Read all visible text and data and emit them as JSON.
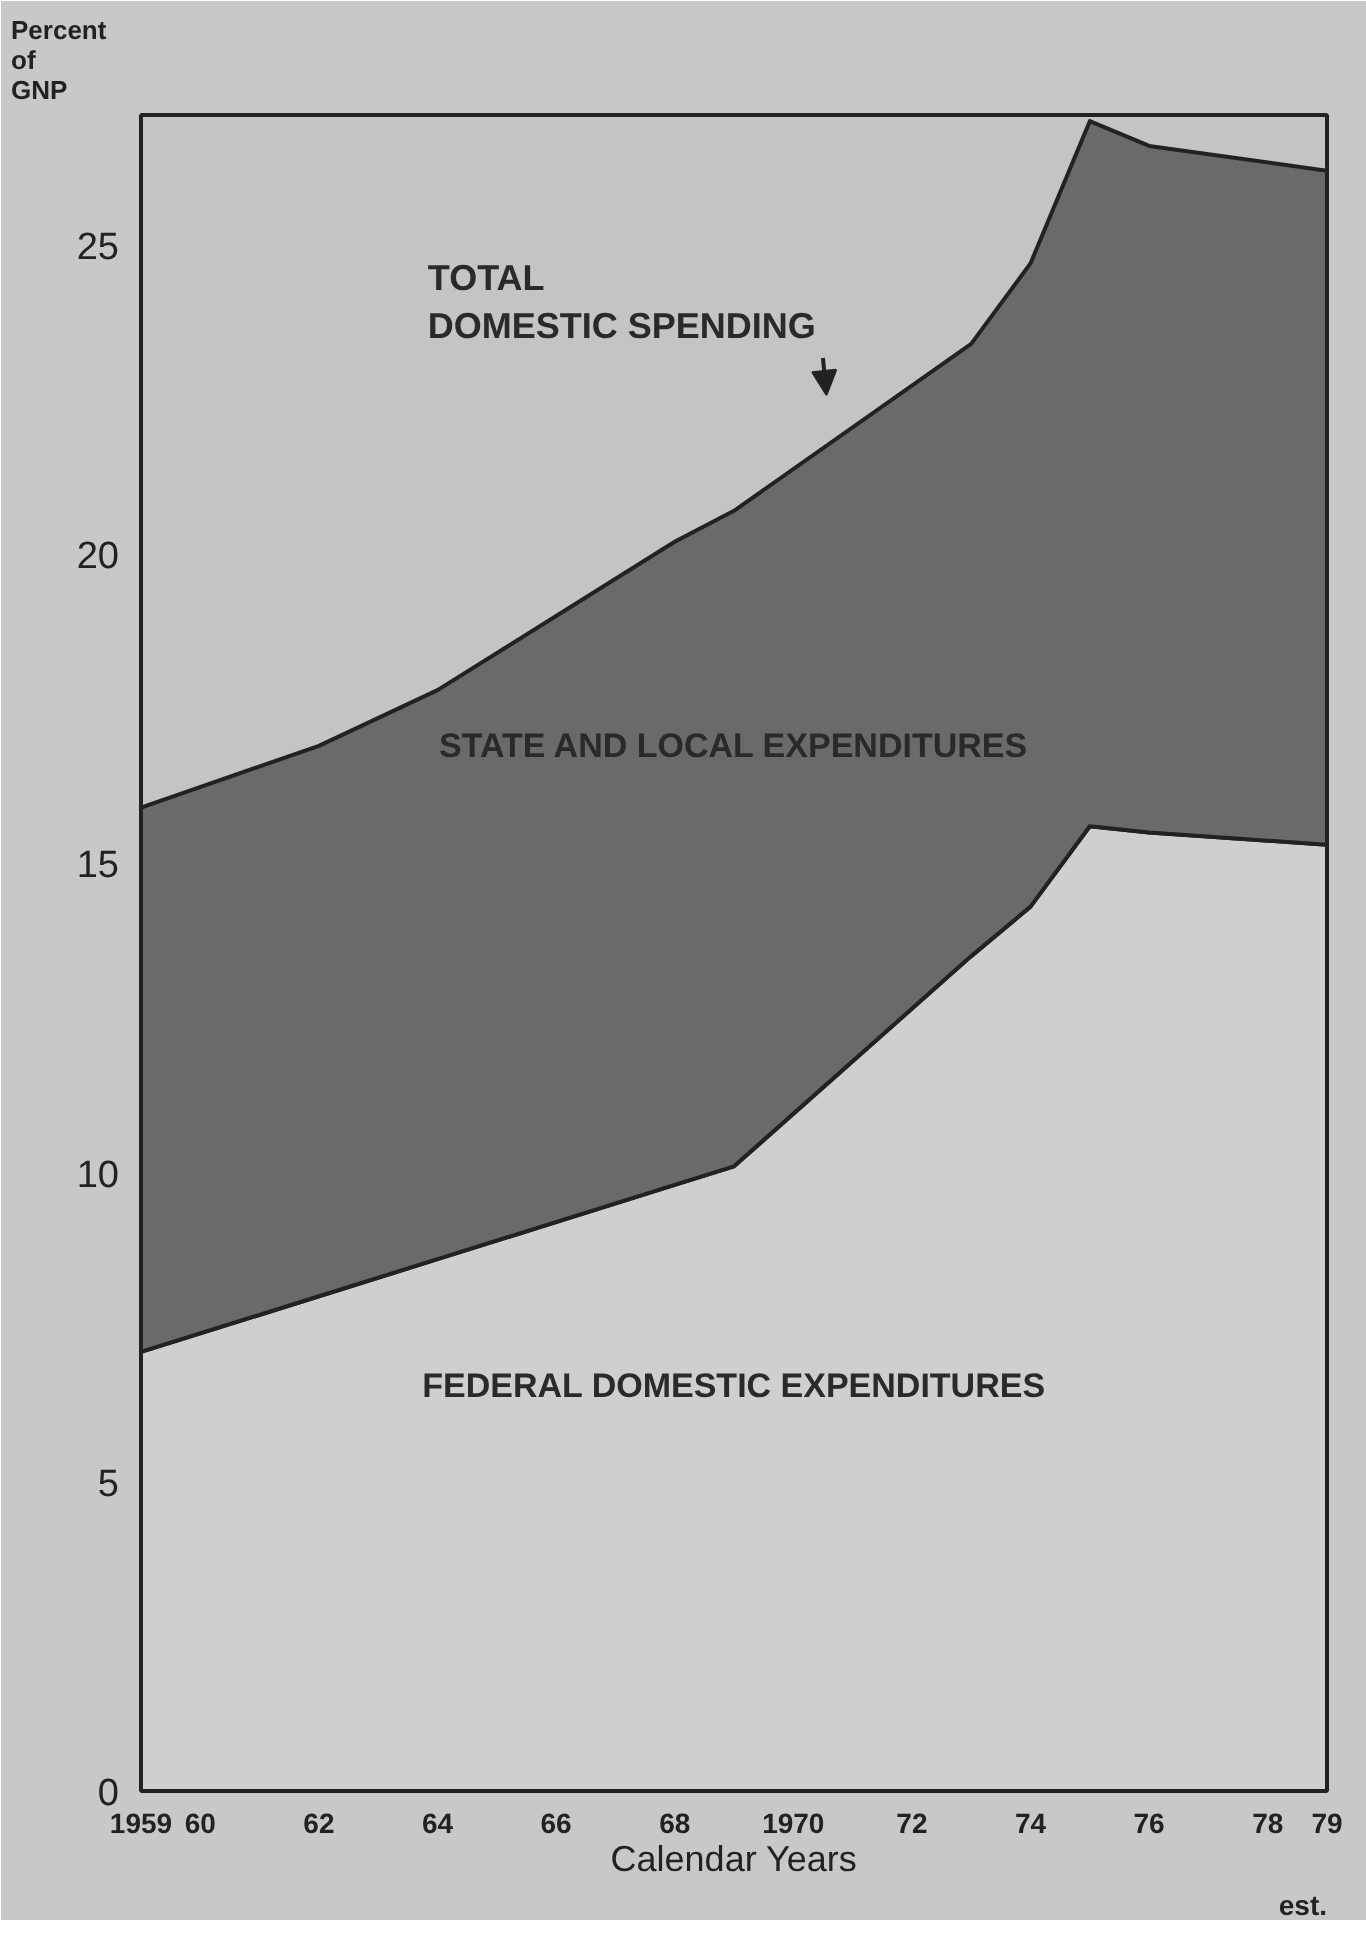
{
  "chart_data": {
    "type": "area",
    "stacked": true,
    "xlabel": "Calendar Years",
    "ylabel": "Percent of GNP",
    "x": [
      1959,
      1962,
      1964,
      1968,
      1969,
      1973,
      1974,
      1975,
      1976,
      1979
    ],
    "series": [
      {
        "name": "FEDERAL DOMESTIC EXPENDITURES",
        "color": "#cfcfcf",
        "values": [
          7.1,
          8.0,
          8.6,
          9.8,
          10.1,
          13.5,
          14.3,
          15.6,
          15.5,
          15.3
        ]
      },
      {
        "name": "STATE AND LOCAL EXPENDITURES",
        "color": "#6a6a6a",
        "values": [
          8.8,
          8.9,
          9.2,
          10.4,
          10.6,
          9.9,
          10.4,
          11.4,
          11.1,
          10.9
        ]
      }
    ],
    "annotations": [
      "TOTAL DOMESTIC SPENDING",
      "est."
    ],
    "xlim": [
      1959,
      1979
    ],
    "ylim": [
      0,
      27.1
    ],
    "xticks": [
      1959,
      {
        "value": 1960,
        "label": "60"
      },
      {
        "value": 1962,
        "label": "62"
      },
      {
        "value": 1964,
        "label": "64"
      },
      {
        "value": 1966,
        "label": "66"
      },
      {
        "value": 1968,
        "label": "68"
      },
      1970,
      {
        "value": 1972,
        "label": "72"
      },
      {
        "value": 1974,
        "label": "74"
      },
      {
        "value": 1976,
        "label": "76"
      },
      {
        "value": 1978,
        "label": "78"
      },
      {
        "value": 1979,
        "label": "79"
      }
    ],
    "yticks": [
      0,
      5,
      10,
      15,
      20,
      25
    ],
    "grid": false
  }
}
